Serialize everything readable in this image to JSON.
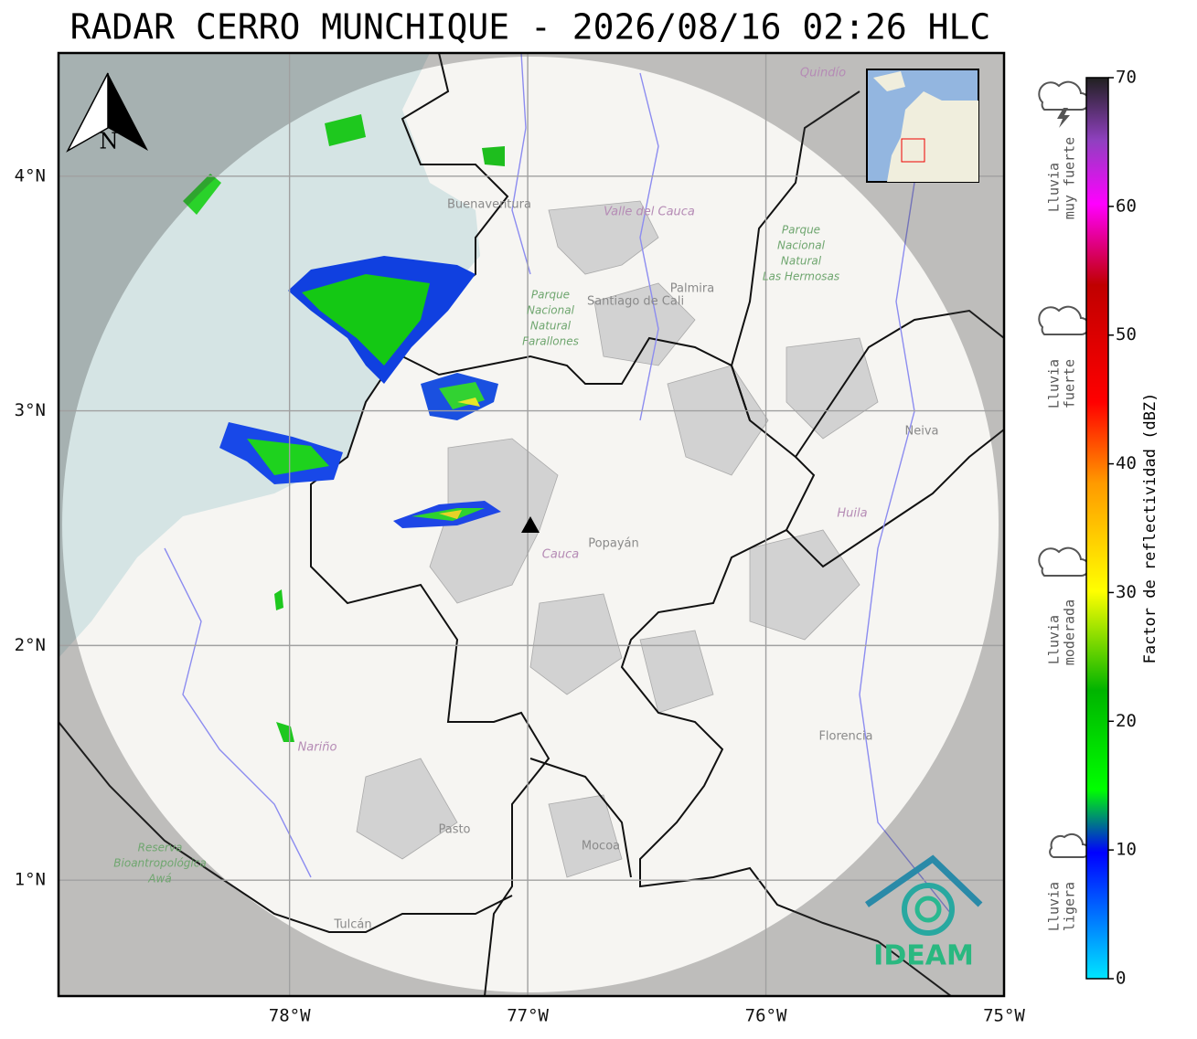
{
  "title": "RADAR CERRO MUNCHIQUE - 2026/08/16 02:26 HLC",
  "map": {
    "xlim": [
      -78.97,
      -75
    ],
    "ylim": [
      0.506,
      4.525
    ],
    "grid": true,
    "xticks": [
      {
        "value": -78,
        "label": "78°W"
      },
      {
        "value": -77,
        "label": "77°W"
      },
      {
        "value": -76,
        "label": "76°W"
      },
      {
        "value": -75,
        "label": "75°W"
      }
    ],
    "yticks": [
      {
        "value": 1,
        "label": "1°N"
      },
      {
        "value": 2,
        "label": "2°N"
      },
      {
        "value": 3,
        "label": "3°N"
      },
      {
        "value": 4,
        "label": "4°N"
      }
    ]
  },
  "places": [
    "Buenaventura",
    "Valle del Cauca",
    "Santiago de Cali",
    "Palmira",
    "Neiva",
    "Huila",
    "Cauca",
    "Popayán",
    "Nariño",
    "Pasto",
    "Mocoa",
    "Florencia",
    "Tulcán",
    "Quindío"
  ],
  "parks": [
    [
      "Parque",
      "Nacional",
      "Natural",
      "Farallones"
    ],
    [
      "Parque",
      "Nacional",
      "Natural",
      "Las Hermosas"
    ],
    [
      "Reserva",
      "Bioantropológica",
      "Awá"
    ]
  ],
  "north_label": "N",
  "logo_text": "IDEAM",
  "rain_levels": [
    [
      "Lluvia",
      "muy fuerte"
    ],
    [
      "Lluvia",
      "fuerte"
    ],
    [
      "Lluvia",
      "moderada"
    ],
    [
      "Lluvia",
      "ligera"
    ]
  ],
  "colorbar": {
    "label": "Factor de reflectividad (dBZ)",
    "lim": [
      0,
      70
    ],
    "ticks": [
      0,
      10,
      20,
      30,
      40,
      50,
      60,
      70
    ]
  }
}
